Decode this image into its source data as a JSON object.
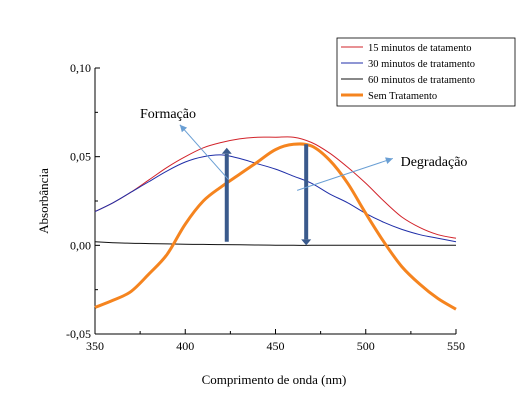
{
  "chart_data": {
    "type": "line",
    "title": "",
    "xlabel": "Comprimento de onda (nm)",
    "ylabel": "Absorbância",
    "xlim": [
      350,
      550
    ],
    "ylim": [
      -0.05,
      0.1
    ],
    "xticks": [
      350,
      400,
      450,
      500,
      550
    ],
    "xtick_labels": [
      "350",
      "400",
      "450",
      "500",
      "550"
    ],
    "yticks": [
      -0.05,
      0.0,
      0.05,
      0.1
    ],
    "ytick_labels": [
      "-0,05",
      "0,00",
      "0,05",
      "0,10"
    ],
    "grid": false,
    "legend_position": "top-right",
    "series": [
      {
        "name": "15 minutos de tatamento",
        "color": "#d2232a",
        "x": [
          350,
          360,
          370,
          380,
          390,
          400,
          410,
          420,
          430,
          440,
          450,
          460,
          470,
          480,
          490,
          500,
          510,
          520,
          530,
          540,
          550
        ],
        "y": [
          0.019,
          0.024,
          0.03,
          0.037,
          0.044,
          0.05,
          0.055,
          0.058,
          0.06,
          0.061,
          0.061,
          0.061,
          0.058,
          0.052,
          0.044,
          0.035,
          0.025,
          0.016,
          0.01,
          0.006,
          0.004
        ]
      },
      {
        "name": "30 minutos de tratamento",
        "color": "#1f2ea8",
        "x": [
          350,
          360,
          370,
          380,
          390,
          400,
          410,
          420,
          430,
          440,
          450,
          460,
          470,
          480,
          490,
          500,
          510,
          520,
          530,
          540,
          550
        ],
        "y": [
          0.019,
          0.024,
          0.03,
          0.036,
          0.042,
          0.047,
          0.05,
          0.051,
          0.049,
          0.046,
          0.043,
          0.039,
          0.035,
          0.029,
          0.024,
          0.018,
          0.013,
          0.009,
          0.006,
          0.004,
          0.002
        ]
      },
      {
        "name": "60 minutos de tratamento",
        "color": "#111111",
        "x": [
          350,
          360,
          370,
          380,
          390,
          400,
          410,
          420,
          430,
          440,
          450,
          460,
          470,
          480,
          490,
          500,
          510,
          520,
          530,
          540,
          550
        ],
        "y": [
          0.002,
          0.0015,
          0.0012,
          0.001,
          0.0008,
          0.0006,
          0.0005,
          0.0004,
          0.0003,
          0.0002,
          0.0001,
          0.0,
          0.0,
          0.0,
          0.0,
          0.0,
          0.0,
          0.0,
          0.0,
          0.0,
          0.0
        ]
      },
      {
        "name": "Sem Tratamento",
        "color": "#f5841f",
        "x": [
          350,
          360,
          370,
          380,
          390,
          400,
          410,
          420,
          430,
          440,
          450,
          460,
          470,
          480,
          490,
          500,
          510,
          520,
          530,
          540,
          550
        ],
        "y": [
          -0.035,
          -0.031,
          -0.026,
          -0.016,
          -0.005,
          0.012,
          0.025,
          0.033,
          0.04,
          0.047,
          0.054,
          0.057,
          0.056,
          0.048,
          0.035,
          0.018,
          0.002,
          -0.012,
          -0.022,
          -0.03,
          -0.036
        ]
      }
    ],
    "annotations": [
      {
        "text": "Formação",
        "x": 411,
        "y": 0.075,
        "arrow_to": [
          400,
          0.068
        ]
      },
      {
        "text": "Degradação",
        "x": 535,
        "y": 0.048,
        "arrow_to": [
          466,
          0.032
        ]
      }
    ],
    "markers": [
      {
        "x": 423,
        "from": 0.002,
        "to": 0.055,
        "direction": "up",
        "color": "#3a5a8c"
      },
      {
        "x": 467,
        "from": 0.057,
        "to": 0.0,
        "direction": "down",
        "color": "#3a5a8c"
      }
    ]
  }
}
